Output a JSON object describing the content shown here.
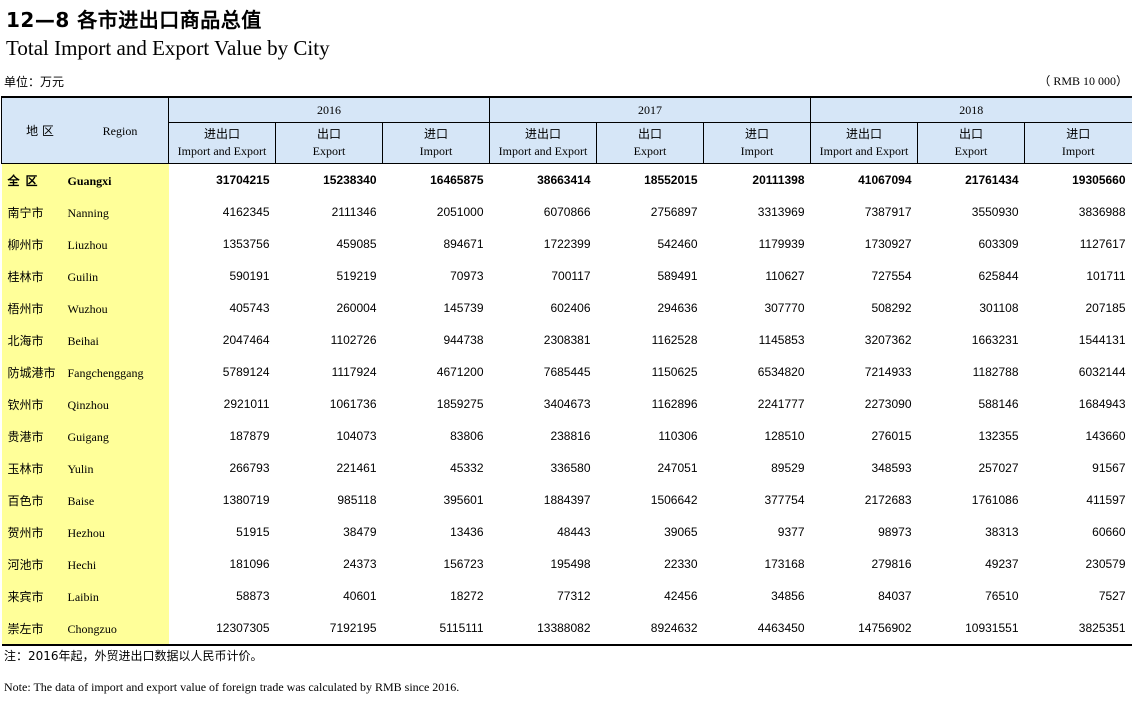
{
  "title_cn": "12—8  各市进出口商品总值",
  "title_en": "Total Import and Export Value by City",
  "unit_cn": "单位：万元",
  "unit_en": "（ RMB  10 000）",
  "header": {
    "region_cn": "地  区",
    "region_en": "Region",
    "years": [
      "2016",
      "2017",
      "2018"
    ],
    "subcols": [
      {
        "cn": "进出口",
        "en": "Import and Export"
      },
      {
        "cn": "出口",
        "en": "Export"
      },
      {
        "cn": "进口",
        "en": "Import"
      }
    ]
  },
  "rows": [
    {
      "cn": "全区",
      "en": "Guangxi",
      "v": [
        "31704215",
        "15238340",
        "16465875",
        "38663414",
        "18552015",
        "20111398",
        "41067094",
        "21761434",
        "19305660"
      ]
    },
    {
      "cn": "南宁市",
      "en": "Nanning",
      "v": [
        "4162345",
        "2111346",
        "2051000",
        "6070866",
        "2756897",
        "3313969",
        "7387917",
        "3550930",
        "3836988"
      ]
    },
    {
      "cn": "柳州市",
      "en": "Liuzhou",
      "v": [
        "1353756",
        "459085",
        "894671",
        "1722399",
        "542460",
        "1179939",
        "1730927",
        "603309",
        "1127617"
      ]
    },
    {
      "cn": "桂林市",
      "en": "Guilin",
      "v": [
        "590191",
        "519219",
        "70973",
        "700117",
        "589491",
        "110627",
        "727554",
        "625844",
        "101711"
      ]
    },
    {
      "cn": "梧州市",
      "en": "Wuzhou",
      "v": [
        "405743",
        "260004",
        "145739",
        "602406",
        "294636",
        "307770",
        "508292",
        "301108",
        "207185"
      ]
    },
    {
      "cn": "北海市",
      "en": "Beihai",
      "v": [
        "2047464",
        "1102726",
        "944738",
        "2308381",
        "1162528",
        "1145853",
        "3207362",
        "1663231",
        "1544131"
      ]
    },
    {
      "cn": "防城港市",
      "en": "Fangchenggang",
      "v": [
        "5789124",
        "1117924",
        "4671200",
        "7685445",
        "1150625",
        "6534820",
        "7214933",
        "1182788",
        "6032144"
      ]
    },
    {
      "cn": "钦州市",
      "en": "Qinzhou",
      "v": [
        "2921011",
        "1061736",
        "1859275",
        "3404673",
        "1162896",
        "2241777",
        "2273090",
        "588146",
        "1684943"
      ]
    },
    {
      "cn": "贵港市",
      "en": "Guigang",
      "v": [
        "187879",
        "104073",
        "83806",
        "238816",
        "110306",
        "128510",
        "276015",
        "132355",
        "143660"
      ]
    },
    {
      "cn": "玉林市",
      "en": "Yulin",
      "v": [
        "266793",
        "221461",
        "45332",
        "336580",
        "247051",
        "89529",
        "348593",
        "257027",
        "91567"
      ]
    },
    {
      "cn": "百色市",
      "en": "Baise",
      "v": [
        "1380719",
        "985118",
        "395601",
        "1884397",
        "1506642",
        "377754",
        "2172683",
        "1761086",
        "411597"
      ]
    },
    {
      "cn": "贺州市",
      "en": "Hezhou",
      "v": [
        "51915",
        "38479",
        "13436",
        "48443",
        "39065",
        "9377",
        "98973",
        "38313",
        "60660"
      ]
    },
    {
      "cn": "河池市",
      "en": "Hechi",
      "v": [
        "181096",
        "24373",
        "156723",
        "195498",
        "22330",
        "173168",
        "279816",
        "49237",
        "230579"
      ]
    },
    {
      "cn": "来宾市",
      "en": "Laibin",
      "v": [
        "58873",
        "40601",
        "18272",
        "77312",
        "42456",
        "34856",
        "84037",
        "76510",
        "7527"
      ]
    },
    {
      "cn": "崇左市",
      "en": "Chongzuo",
      "v": [
        "12307305",
        "7192195",
        "5115111",
        "13388082",
        "8924632",
        "4463450",
        "14756902",
        "10931551",
        "3825351"
      ]
    }
  ],
  "note_cn": "注：2016年起，外贸进出口数据以人民币计价。",
  "note_en": "Note: The data of import and export value of foreign trade was calculated by RMB since 2016."
}
